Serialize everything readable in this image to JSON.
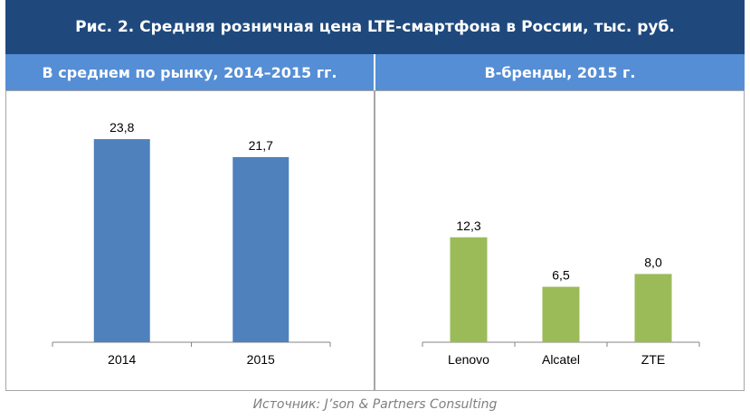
{
  "title": "Рис. 2. Средняя розничная цена LTE-смартфона в России, тыс. руб.",
  "source": "Источник: J’son & Partners Consulting",
  "colors": {
    "title_bg": "#1f497d",
    "header_bg": "#558ed5",
    "left_bars": "#4f81bd",
    "right_bars": "#9bbb59"
  },
  "chart_data": [
    {
      "type": "bar",
      "title": "В среднем по рынку, 2014–2015 гг.",
      "categories": [
        "2014",
        "2015"
      ],
      "values": [
        23.8,
        21.7
      ],
      "value_labels": [
        "23,8",
        "21,7"
      ],
      "ylim": [
        0,
        25
      ],
      "xlabel": "",
      "ylabel": "",
      "grid": false
    },
    {
      "type": "bar",
      "title": "B-бренды, 2015 г.",
      "categories": [
        "Lenovo",
        "Alcatel",
        "ZTE"
      ],
      "values": [
        12.3,
        6.5,
        8.0
      ],
      "value_labels": [
        "12,3",
        "6,5",
        "8,0"
      ],
      "ylim": [
        0,
        25
      ],
      "xlabel": "",
      "ylabel": "",
      "grid": false
    }
  ]
}
